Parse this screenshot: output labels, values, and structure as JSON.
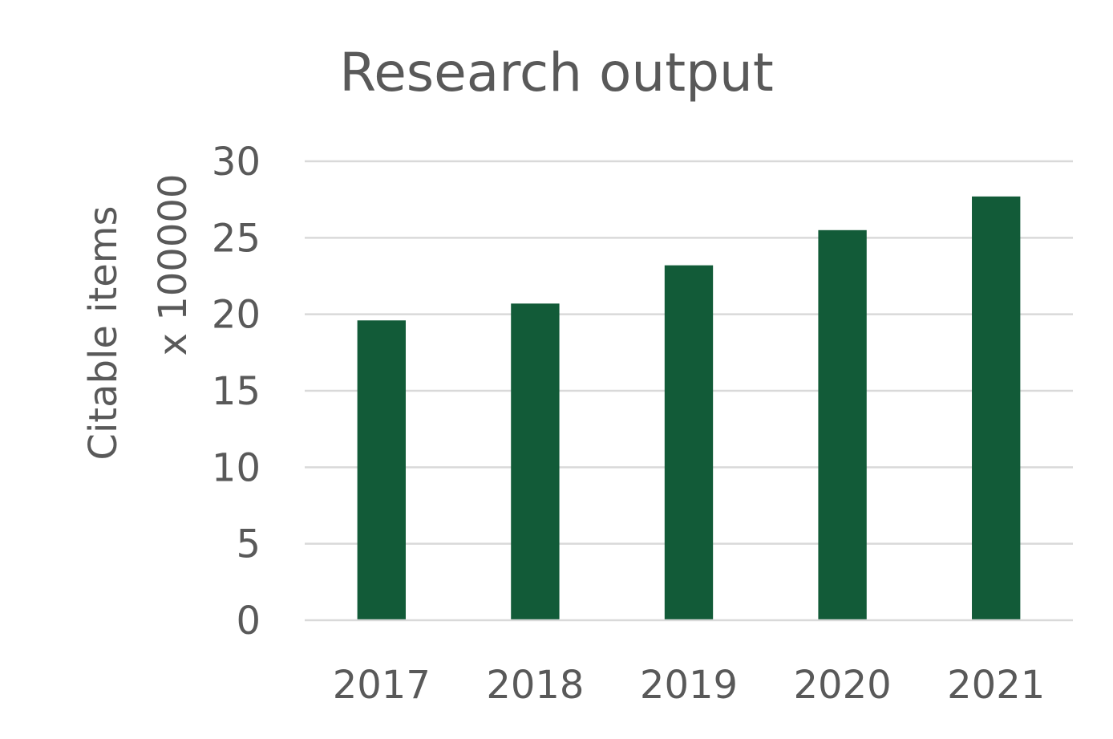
{
  "chart_data": {
    "type": "bar",
    "title": "Research output",
    "ylabel_line1": "Citable items",
    "ylabel_line2": "x 100000",
    "xlabel": "",
    "categories": [
      "2017",
      "2018",
      "2019",
      "2020",
      "2021"
    ],
    "values": [
      19.6,
      20.7,
      23.2,
      25.5,
      27.7
    ],
    "ylim": [
      0,
      30
    ],
    "yticks": [
      0,
      5,
      10,
      15,
      20,
      25,
      30
    ],
    "grid": true,
    "legend": "none",
    "bar_color": "#125b38",
    "gridline_color": "#d9d9d9",
    "text_color": "#595959"
  }
}
